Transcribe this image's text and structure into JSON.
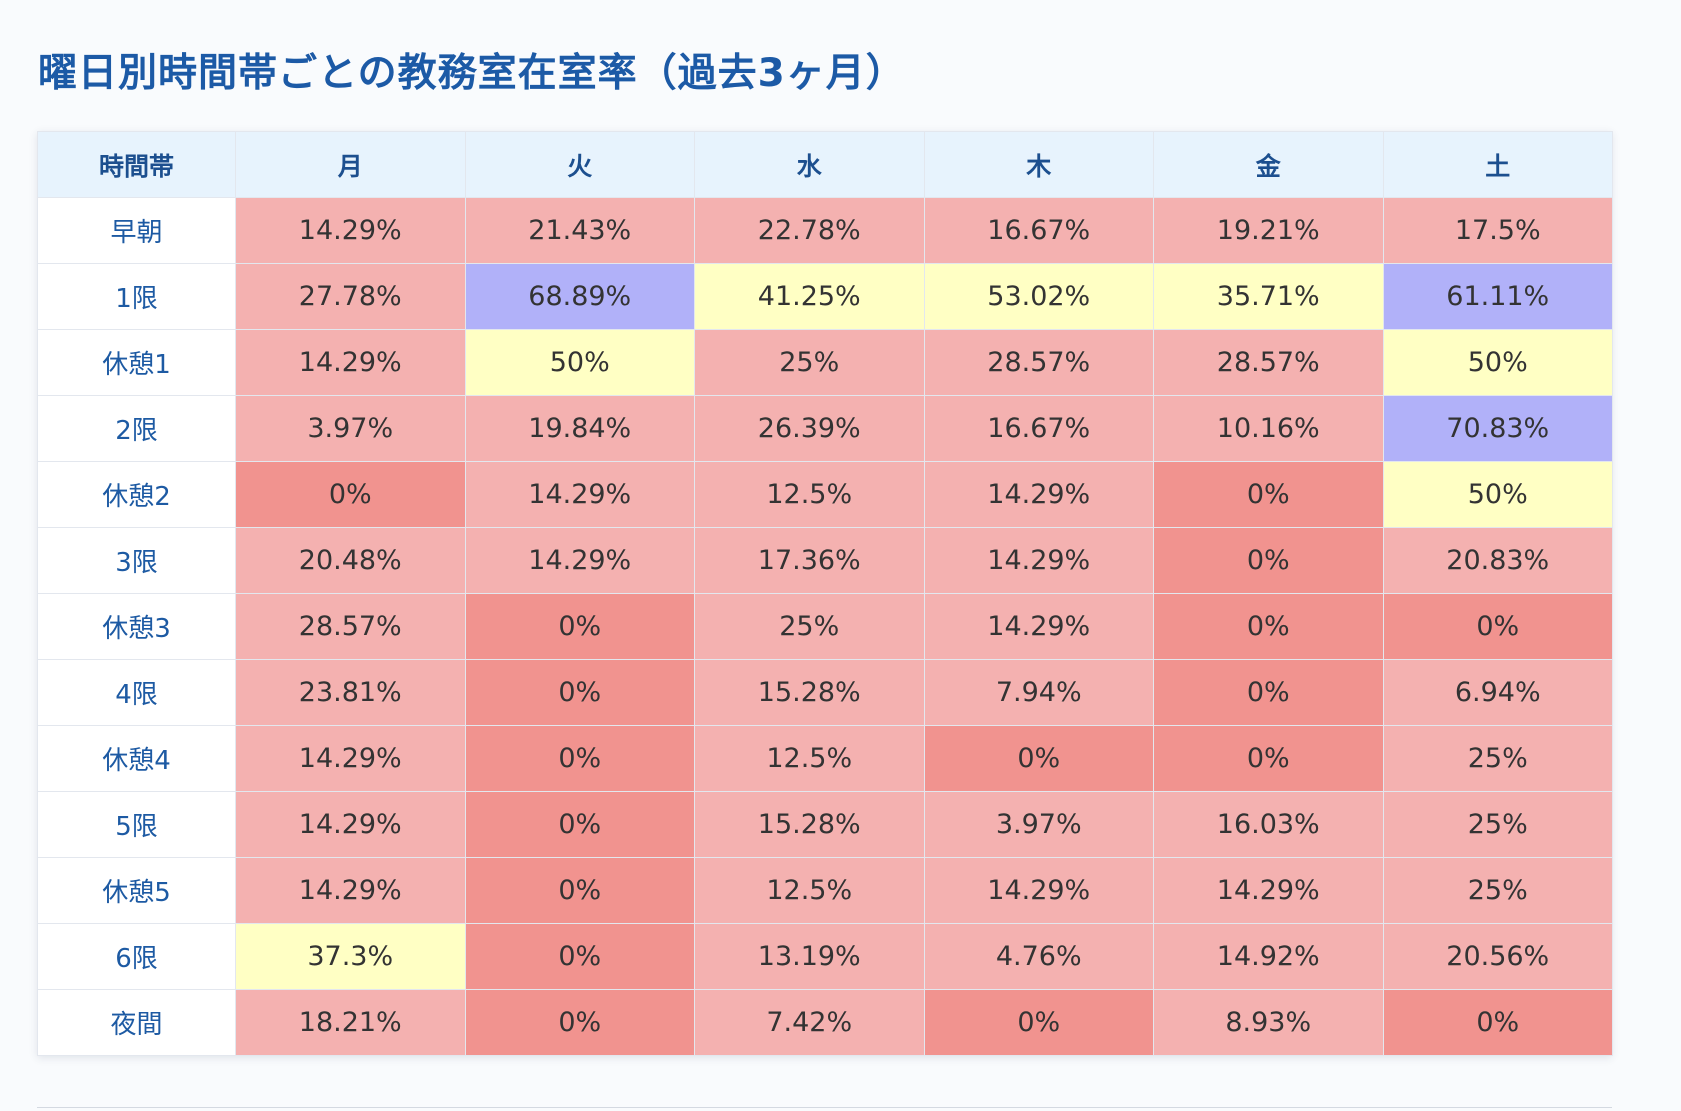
{
  "title": "曜日別時間帯ごとの教務室在室率（過去3ヶ月）",
  "colors": {
    "title": "#1c5aa6",
    "header_bg": "#e7f3fd",
    "zero": "#f1938f",
    "low": "#f4b1b0",
    "mid": "#ffffc4",
    "high": "#b1b1f9"
  },
  "chart_data": {
    "type": "heatmap",
    "title": "曜日別時間帯ごとの教務室在室率（過去3ヶ月）",
    "row_header_label": "時間帯",
    "columns": [
      "月",
      "火",
      "水",
      "木",
      "金",
      "土"
    ],
    "rows": [
      "早朝",
      "1限",
      "休憩1",
      "2限",
      "休憩2",
      "3限",
      "休憩3",
      "4限",
      "休憩4",
      "5限",
      "休憩5",
      "6限",
      "夜間"
    ],
    "unit": "%",
    "values": [
      [
        14.29,
        21.43,
        22.78,
        16.67,
        19.21,
        17.5
      ],
      [
        27.78,
        68.89,
        41.25,
        53.02,
        35.71,
        61.11
      ],
      [
        14.29,
        50,
        25,
        28.57,
        28.57,
        50
      ],
      [
        3.97,
        19.84,
        26.39,
        16.67,
        10.16,
        70.83
      ],
      [
        0,
        14.29,
        12.5,
        14.29,
        0,
        50
      ],
      [
        20.48,
        14.29,
        17.36,
        14.29,
        0,
        20.83
      ],
      [
        28.57,
        0,
        25,
        14.29,
        0,
        0
      ],
      [
        23.81,
        0,
        15.28,
        7.94,
        0,
        6.94
      ],
      [
        14.29,
        0,
        12.5,
        0,
        0,
        25
      ],
      [
        14.29,
        0,
        15.28,
        3.97,
        16.03,
        25
      ],
      [
        14.29,
        0,
        12.5,
        14.29,
        14.29,
        25
      ],
      [
        37.3,
        0,
        13.19,
        4.76,
        14.92,
        20.56
      ],
      [
        18.21,
        0,
        7.42,
        0,
        8.93,
        0
      ]
    ]
  }
}
